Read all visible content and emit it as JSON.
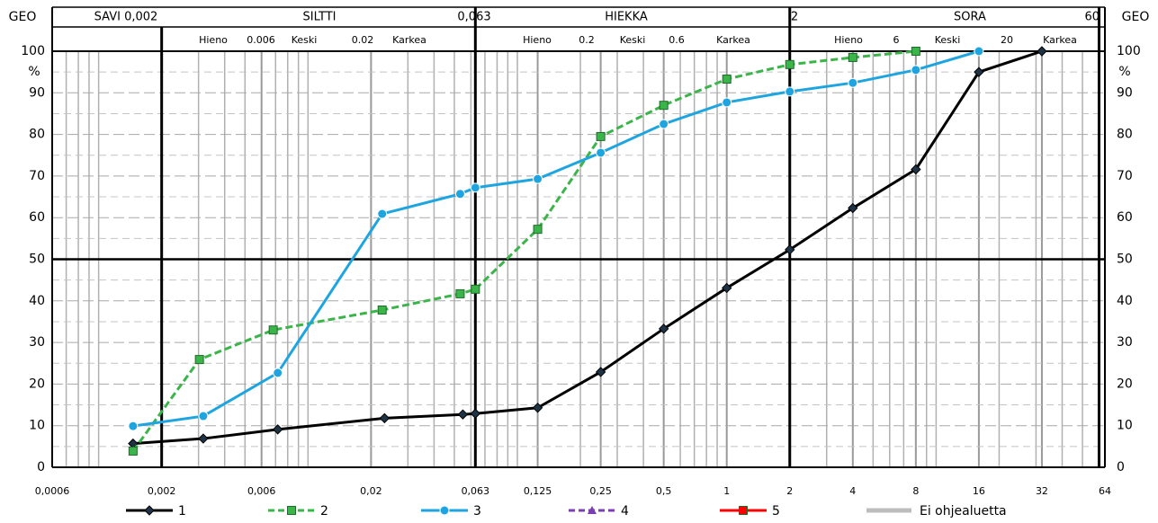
{
  "chart_data": {
    "type": "line",
    "x_scale": "log",
    "xlim": [
      0.0006,
      64
    ],
    "ylim": [
      0,
      100
    ],
    "xticks": [
      {
        "value": 0.0006,
        "label": "0,0006"
      },
      {
        "value": 0.002,
        "label": "0,002"
      },
      {
        "value": 0.006,
        "label": "0,006"
      },
      {
        "value": 0.02,
        "label": "0,02"
      },
      {
        "value": 0.063,
        "label": "0,063"
      },
      {
        "value": 0.125,
        "label": "0,125"
      },
      {
        "value": 0.25,
        "label": "0,25"
      },
      {
        "value": 0.5,
        "label": "0,5"
      },
      1,
      2,
      4,
      8,
      16,
      32,
      64
    ],
    "yticks": [
      0,
      10,
      20,
      30,
      40,
      50,
      60,
      70,
      80,
      90,
      100
    ],
    "y_unit": "%",
    "side_label": "GEO",
    "header": {
      "main": [
        "SAVI 0,002",
        "SILTTI",
        "0,063",
        "HIEKKA",
        "2",
        "SORA",
        "60"
      ],
      "sub": [
        "Hieno",
        "0.006",
        "Keski",
        "0.02",
        "Karkea",
        "Hieno",
        "0.2",
        "Keski",
        "0.6",
        "Karkea",
        "Hieno",
        "6",
        "Keski",
        "20",
        "Karkea"
      ]
    },
    "class_limits": [
      0.002,
      0.063,
      2,
      60
    ],
    "center_line": 50,
    "grid": true,
    "series": [
      {
        "name": "1",
        "color": "#000000",
        "marker": "diamond",
        "dash": false,
        "x": [
          0.00146,
          0.00316,
          0.00717,
          0.0232,
          0.0549,
          0.063,
          0.125,
          0.25,
          0.5,
          1,
          2,
          4,
          8,
          16,
          32
        ],
        "values": [
          5.7,
          6.9,
          9.1,
          11.8,
          12.7,
          12.9,
          14.3,
          22.9,
          33.3,
          43.1,
          52.3,
          62.3,
          71.6,
          95,
          100
        ]
      },
      {
        "name": "2",
        "color": "#3bb54a",
        "marker": "square",
        "dash": true,
        "x": [
          0.00146,
          0.00303,
          0.00682,
          0.0226,
          0.0533,
          0.063,
          0.125,
          0.25,
          0.5,
          1,
          2,
          4,
          8
        ],
        "values": [
          3.9,
          25.9,
          33.0,
          37.8,
          41.7,
          42.8,
          57.2,
          79.5,
          87.0,
          93.3,
          96.8,
          98.5,
          100
        ]
      },
      {
        "name": "3",
        "color": "#1ea5e0",
        "marker": "circle",
        "dash": false,
        "x": [
          0.00146,
          0.00316,
          0.00717,
          0.0226,
          0.0533,
          0.063,
          0.125,
          0.25,
          0.5,
          1,
          2,
          4,
          8,
          16
        ],
        "values": [
          9.9,
          12.3,
          22.7,
          60.9,
          65.7,
          67.2,
          69.3,
          75.6,
          82.5,
          87.7,
          90.3,
          92.4,
          95.5,
          100
        ]
      },
      {
        "name": "4",
        "color": "#7a3fb0",
        "marker": "triangle",
        "dash": true,
        "x": [],
        "values": []
      },
      {
        "name": "5",
        "color": "#ff0000",
        "marker": "square",
        "dash": false,
        "x": [],
        "values": []
      }
    ],
    "reference_area": {
      "name": "Ei ohjealuetta",
      "color": "#bdbdbd"
    }
  }
}
